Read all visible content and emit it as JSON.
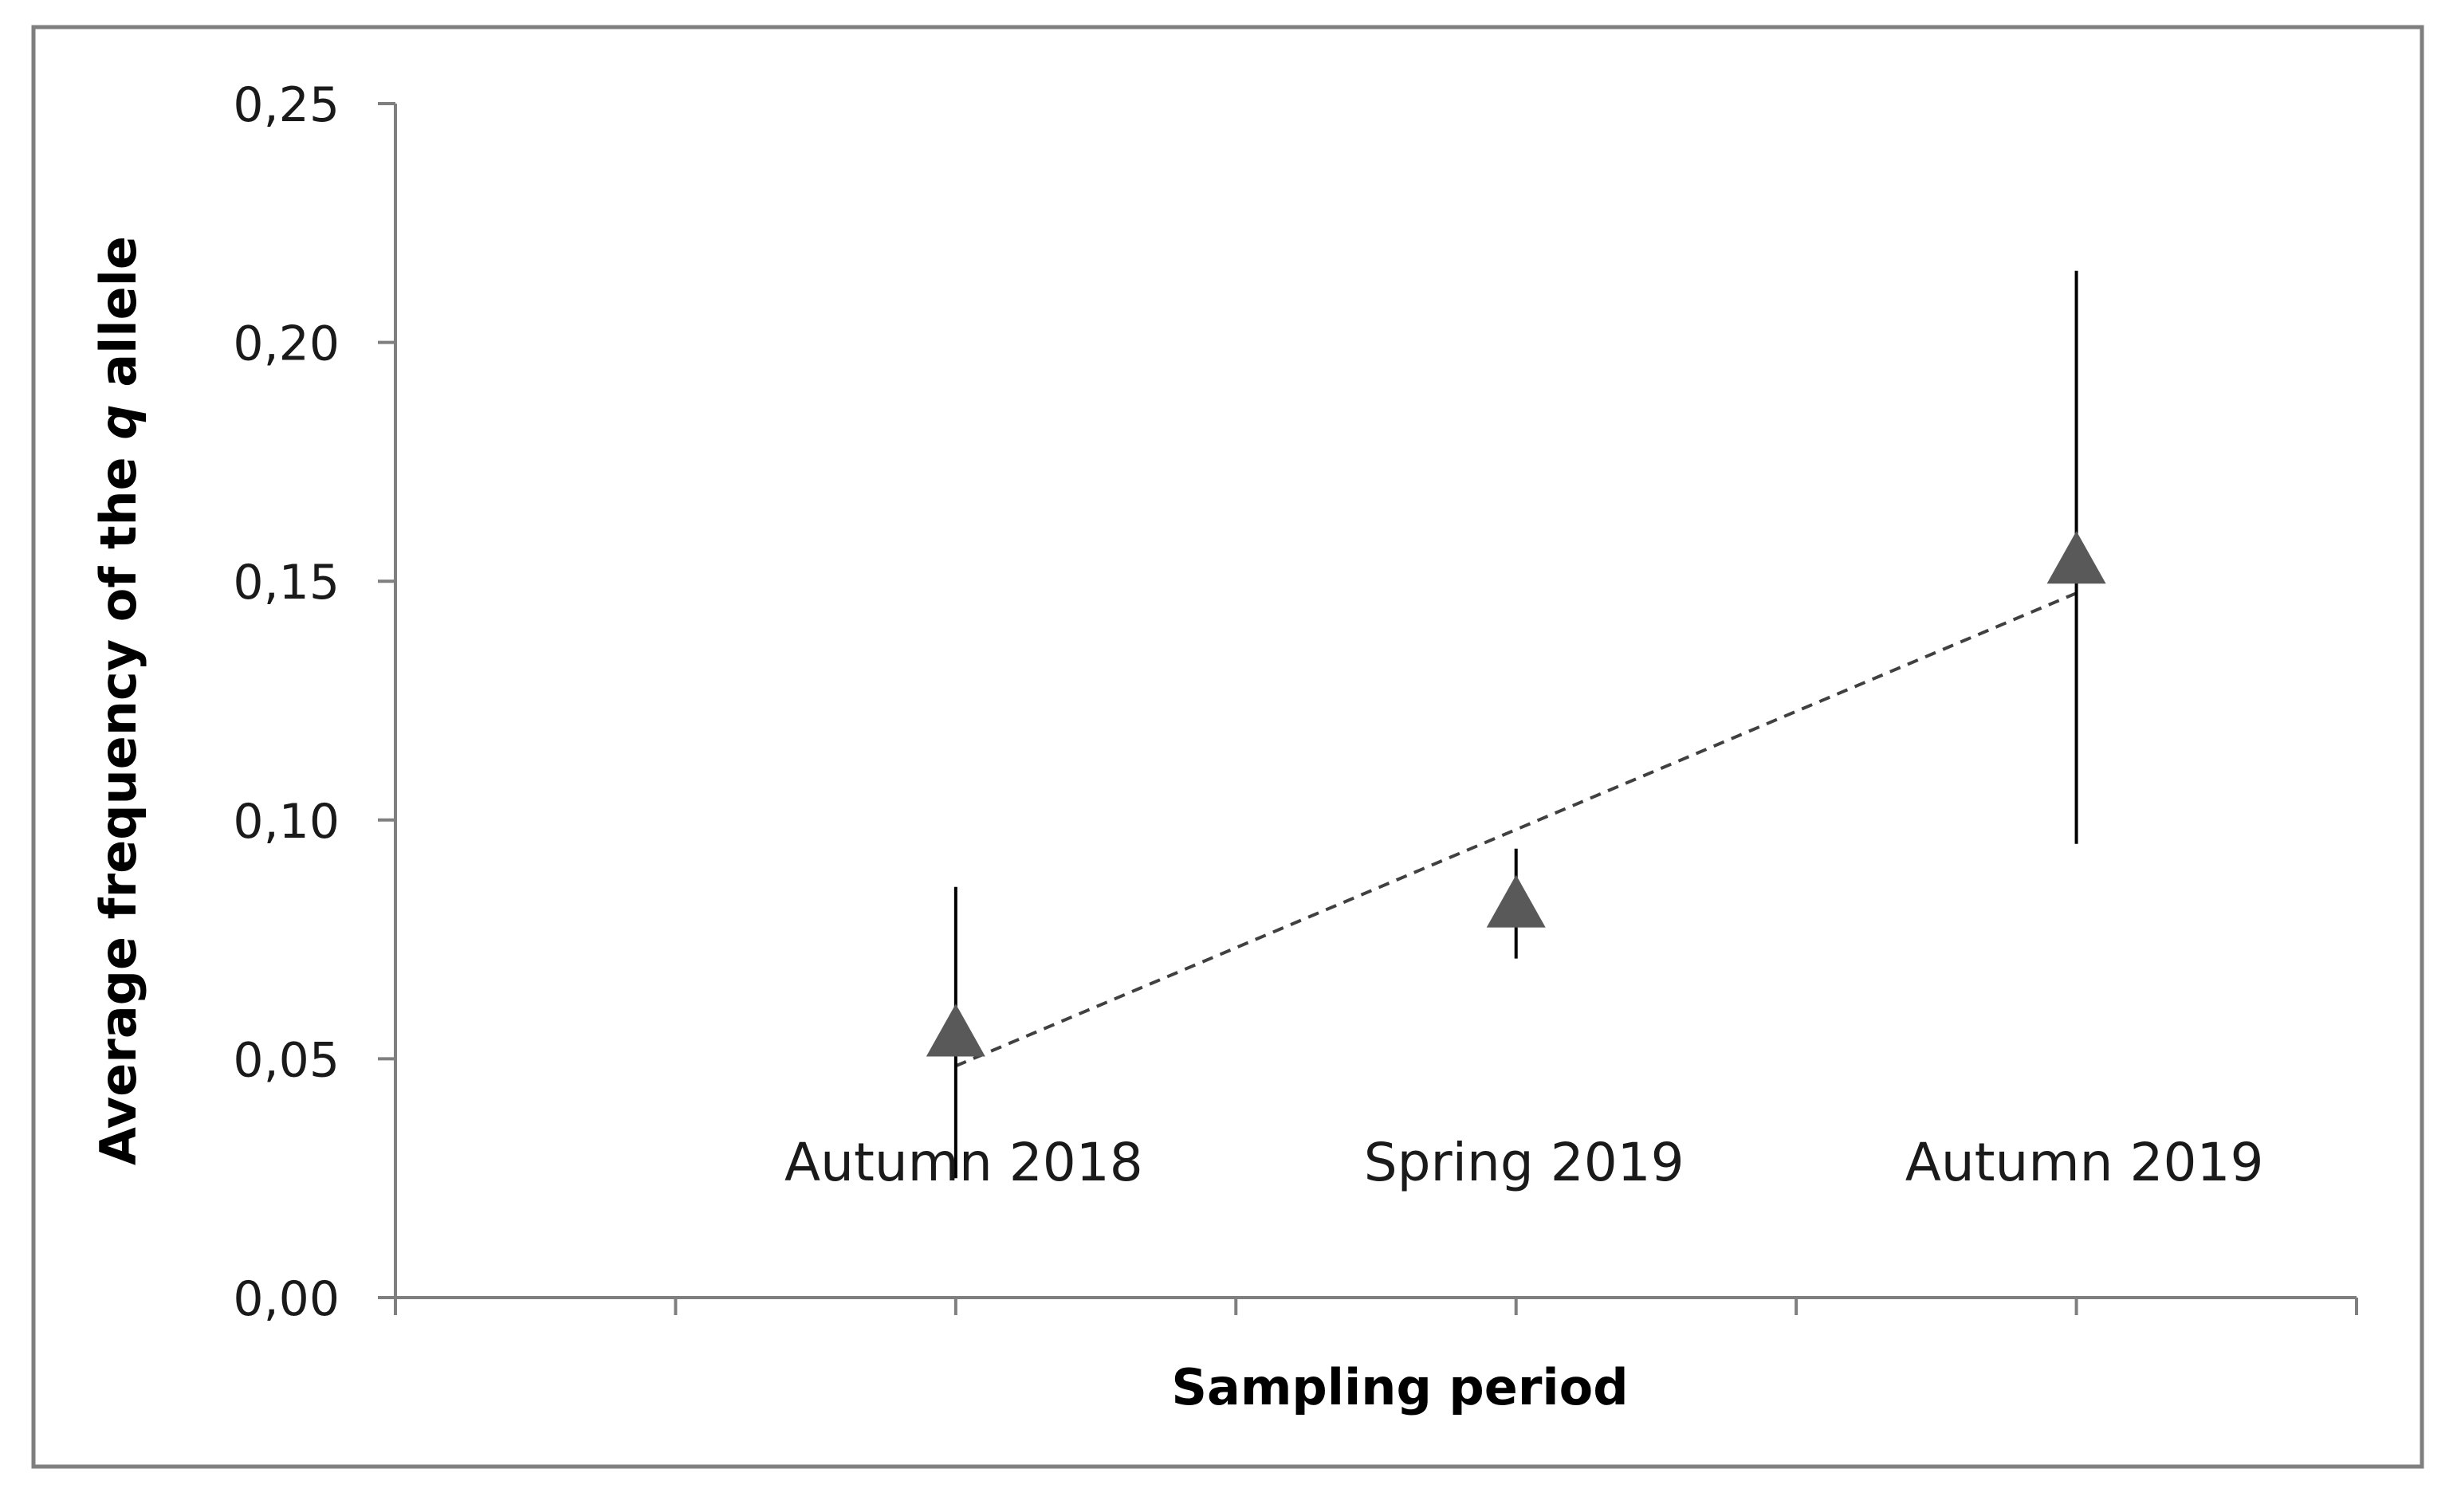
{
  "chart_data": {
    "type": "scatter",
    "title": "",
    "xlabel": "Sampling period",
    "ylabel": {
      "before": "Average frequency of the ",
      "italic": "q",
      "after": " allele"
    },
    "categories": [
      "Autumn 2018",
      "Spring 2019",
      "Autumn 2019"
    ],
    "series": [
      {
        "values": [
          0.056,
          0.083,
          0.155
        ],
        "error_low": [
          0.025,
          0.071,
          0.095
        ],
        "error_high": [
          0.086,
          0.094,
          0.215
        ],
        "marker": "triangle"
      }
    ],
    "trendline": {
      "type": "linear",
      "style": "dashed"
    },
    "ylim": [
      0,
      0.25
    ],
    "yticks": [
      "0,00",
      "0,05",
      "0,10",
      "0,15",
      "0,20",
      "0,25"
    ],
    "ytick_values": [
      0,
      0.05,
      0.1,
      0.15,
      0.2,
      0.25
    ],
    "grid": false,
    "legend": "none",
    "colors": {
      "marker": "#595959",
      "axis": "#7f7f7f",
      "frame": "#7f7f7f",
      "errorbar": "#000000",
      "trend": "#404040"
    }
  }
}
